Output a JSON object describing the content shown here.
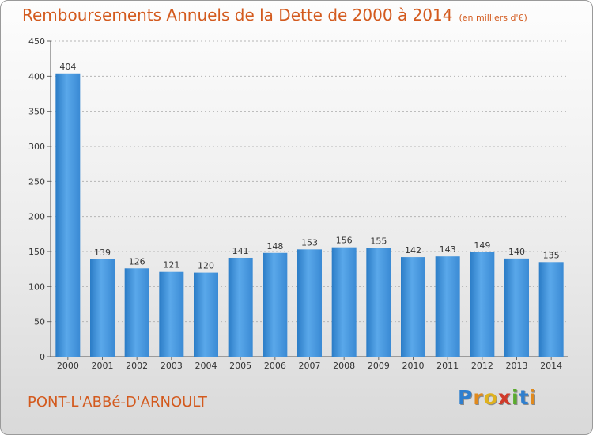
{
  "chart_data": {
    "type": "bar",
    "title": "Remboursements Annuels de la Dette de 2000 à 2014",
    "subtitle": "(en milliers d'€)",
    "categories": [
      "2000",
      "2001",
      "2002",
      "2003",
      "2004",
      "2005",
      "2006",
      "2007",
      "2008",
      "2009",
      "2010",
      "2011",
      "2012",
      "2013",
      "2014"
    ],
    "values": [
      404,
      139,
      126,
      121,
      120,
      141,
      148,
      153,
      156,
      155,
      142,
      143,
      149,
      140,
      135
    ],
    "yticks": [
      "0",
      "50",
      "100",
      "150",
      "200",
      "250",
      "300",
      "350",
      "400",
      "450"
    ],
    "ylim": [
      0,
      450
    ],
    "grid": true,
    "bar_color": "#3d8fd9",
    "legend": "none"
  },
  "footer": {
    "location": "PONT-L'ABBé-D'ARNOULT",
    "logo": {
      "letters": [
        "P",
        "r",
        "o",
        "x",
        "i",
        "t",
        "i"
      ],
      "colors": [
        "#2f7fcf",
        "#e08a1e",
        "#e0b21e",
        "#d03a2a",
        "#5aab2e",
        "#2f7fcf",
        "#e08a1e"
      ]
    }
  }
}
